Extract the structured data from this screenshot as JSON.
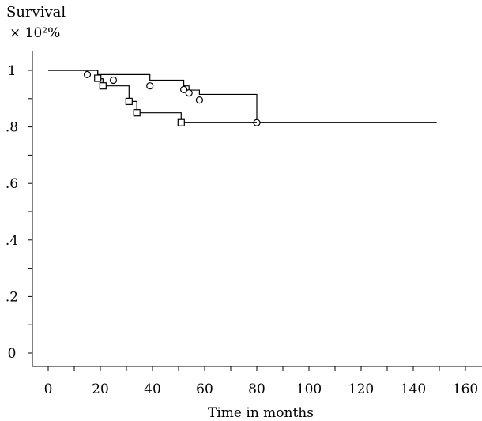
{
  "chart_data": {
    "type": "line",
    "title": "",
    "ylabel": "Survival",
    "ylabel_unit": "× 10²%",
    "xlabel": "Time in months",
    "xlim": [
      0,
      160
    ],
    "ylim": [
      0,
      1
    ],
    "x_ticks": [
      "0",
      "20",
      "40",
      "60",
      "80",
      "100",
      "120",
      "140",
      "160"
    ],
    "y_ticks": [
      "0",
      ".2",
      ".4",
      ".6",
      ".8",
      "1"
    ],
    "grid": false,
    "series": [
      {
        "marker": "circle",
        "steps": [
          [
            0,
            1.0
          ],
          [
            19,
            0.985
          ],
          [
            39,
            0.965
          ],
          [
            52,
            0.945
          ],
          [
            54,
            0.93
          ],
          [
            58,
            0.915
          ],
          [
            80,
            0.895
          ],
          [
            80,
            0.815
          ],
          [
            149,
            0.815
          ]
        ],
        "censored": [
          [
            15,
            0.985
          ],
          [
            25,
            0.965
          ],
          [
            39,
            0.945
          ],
          [
            52,
            0.932
          ],
          [
            54,
            0.92
          ],
          [
            58,
            0.895
          ],
          [
            80,
            0.815
          ]
        ]
      },
      {
        "marker": "square",
        "steps": [
          [
            0,
            1.0
          ],
          [
            19,
            0.985
          ],
          [
            19,
            0.97
          ],
          [
            21,
            0.97
          ],
          [
            21,
            0.945
          ],
          [
            31,
            0.945
          ],
          [
            31,
            0.89
          ],
          [
            34,
            0.89
          ],
          [
            34,
            0.85
          ],
          [
            51,
            0.85
          ],
          [
            51,
            0.815
          ],
          [
            80,
            0.815
          ]
        ],
        "censored": [
          [
            19,
            0.972
          ],
          [
            21,
            0.945
          ],
          [
            31,
            0.89
          ],
          [
            34,
            0.85
          ],
          [
            51,
            0.815
          ]
        ]
      }
    ]
  }
}
